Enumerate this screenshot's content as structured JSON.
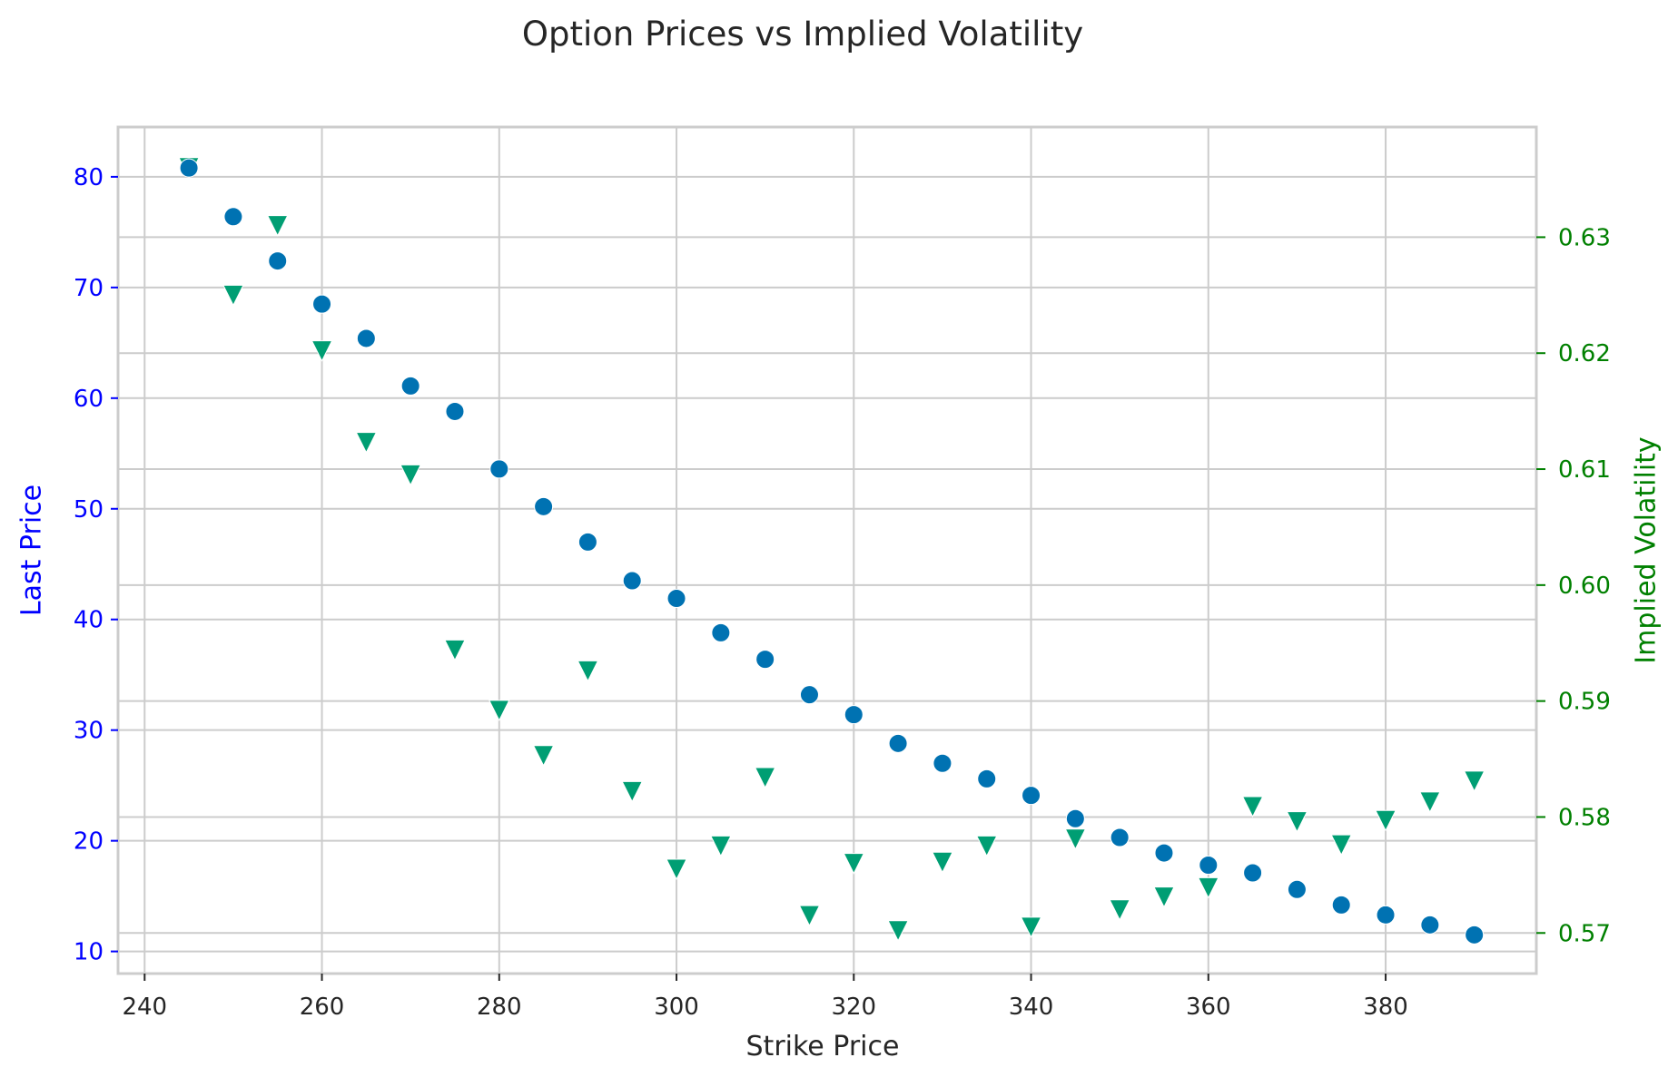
{
  "chart_data": {
    "type": "scatter",
    "title": "Option Prices vs Implied Volatility",
    "xlabel": "Strike Price",
    "ylabel_left": "Last Price",
    "ylabel_right": "Implied Volatility",
    "xlim": [
      237,
      397
    ],
    "ylim_left": [
      8.0,
      84.5
    ],
    "ylim_right": [
      0.5665,
      0.6395
    ],
    "x_ticks": [
      240,
      260,
      280,
      300,
      320,
      340,
      360,
      380
    ],
    "y_ticks_left": [
      10,
      20,
      30,
      40,
      50,
      60,
      70,
      80
    ],
    "y_ticks_right": [
      0.57,
      0.58,
      0.59,
      0.6,
      0.61,
      0.62,
      0.63
    ],
    "y_tick_labels_right": [
      "0.57",
      "0.58",
      "0.59",
      "0.60",
      "0.61",
      "0.62",
      "0.63"
    ],
    "grid": true,
    "colors": {
      "last_price": "#0072B2",
      "implied_volatility": "#009E73",
      "left_axis_text": "#0000FF",
      "right_axis_text": "#008000",
      "grid": "#CCCCCC",
      "spine": "#CCCCCC",
      "text": "#262626"
    },
    "series": [
      {
        "key": "last_price",
        "axis": "left",
        "marker": "circle",
        "x": [
          245,
          250,
          255,
          260,
          265,
          270,
          275,
          280,
          285,
          290,
          295,
          300,
          305,
          310,
          315,
          320,
          325,
          330,
          335,
          340,
          345,
          350,
          355,
          360,
          365,
          370,
          375,
          380,
          385,
          390
        ],
        "y": [
          80.8,
          76.4,
          72.4,
          68.5,
          65.4,
          61.1,
          58.8,
          53.6,
          50.2,
          47.0,
          43.5,
          41.9,
          38.8,
          36.4,
          33.2,
          31.4,
          28.8,
          27.0,
          25.6,
          24.1,
          22.0,
          20.3,
          18.9,
          17.8,
          17.1,
          15.6,
          14.2,
          13.3,
          12.4,
          11.5
        ]
      },
      {
        "key": "implied_volatility",
        "axis": "right",
        "marker": "triangle-down",
        "x": [
          245,
          250,
          255,
          260,
          265,
          270,
          275,
          280,
          285,
          290,
          295,
          300,
          305,
          310,
          315,
          320,
          325,
          330,
          335,
          340,
          345,
          350,
          355,
          360,
          365,
          370,
          375,
          380,
          385,
          390
        ],
        "y": [
          0.636,
          0.625,
          0.631,
          0.6202,
          0.6123,
          0.6095,
          0.5944,
          0.5892,
          0.5853,
          0.5926,
          0.5822,
          0.5755,
          0.5775,
          0.5834,
          0.5715,
          0.576,
          0.5702,
          0.5761,
          0.5775,
          0.5705,
          0.5781,
          0.572,
          0.5731,
          0.5739,
          0.5809,
          0.5796,
          0.5776,
          0.5797,
          0.5813,
          0.5831
        ]
      }
    ]
  }
}
